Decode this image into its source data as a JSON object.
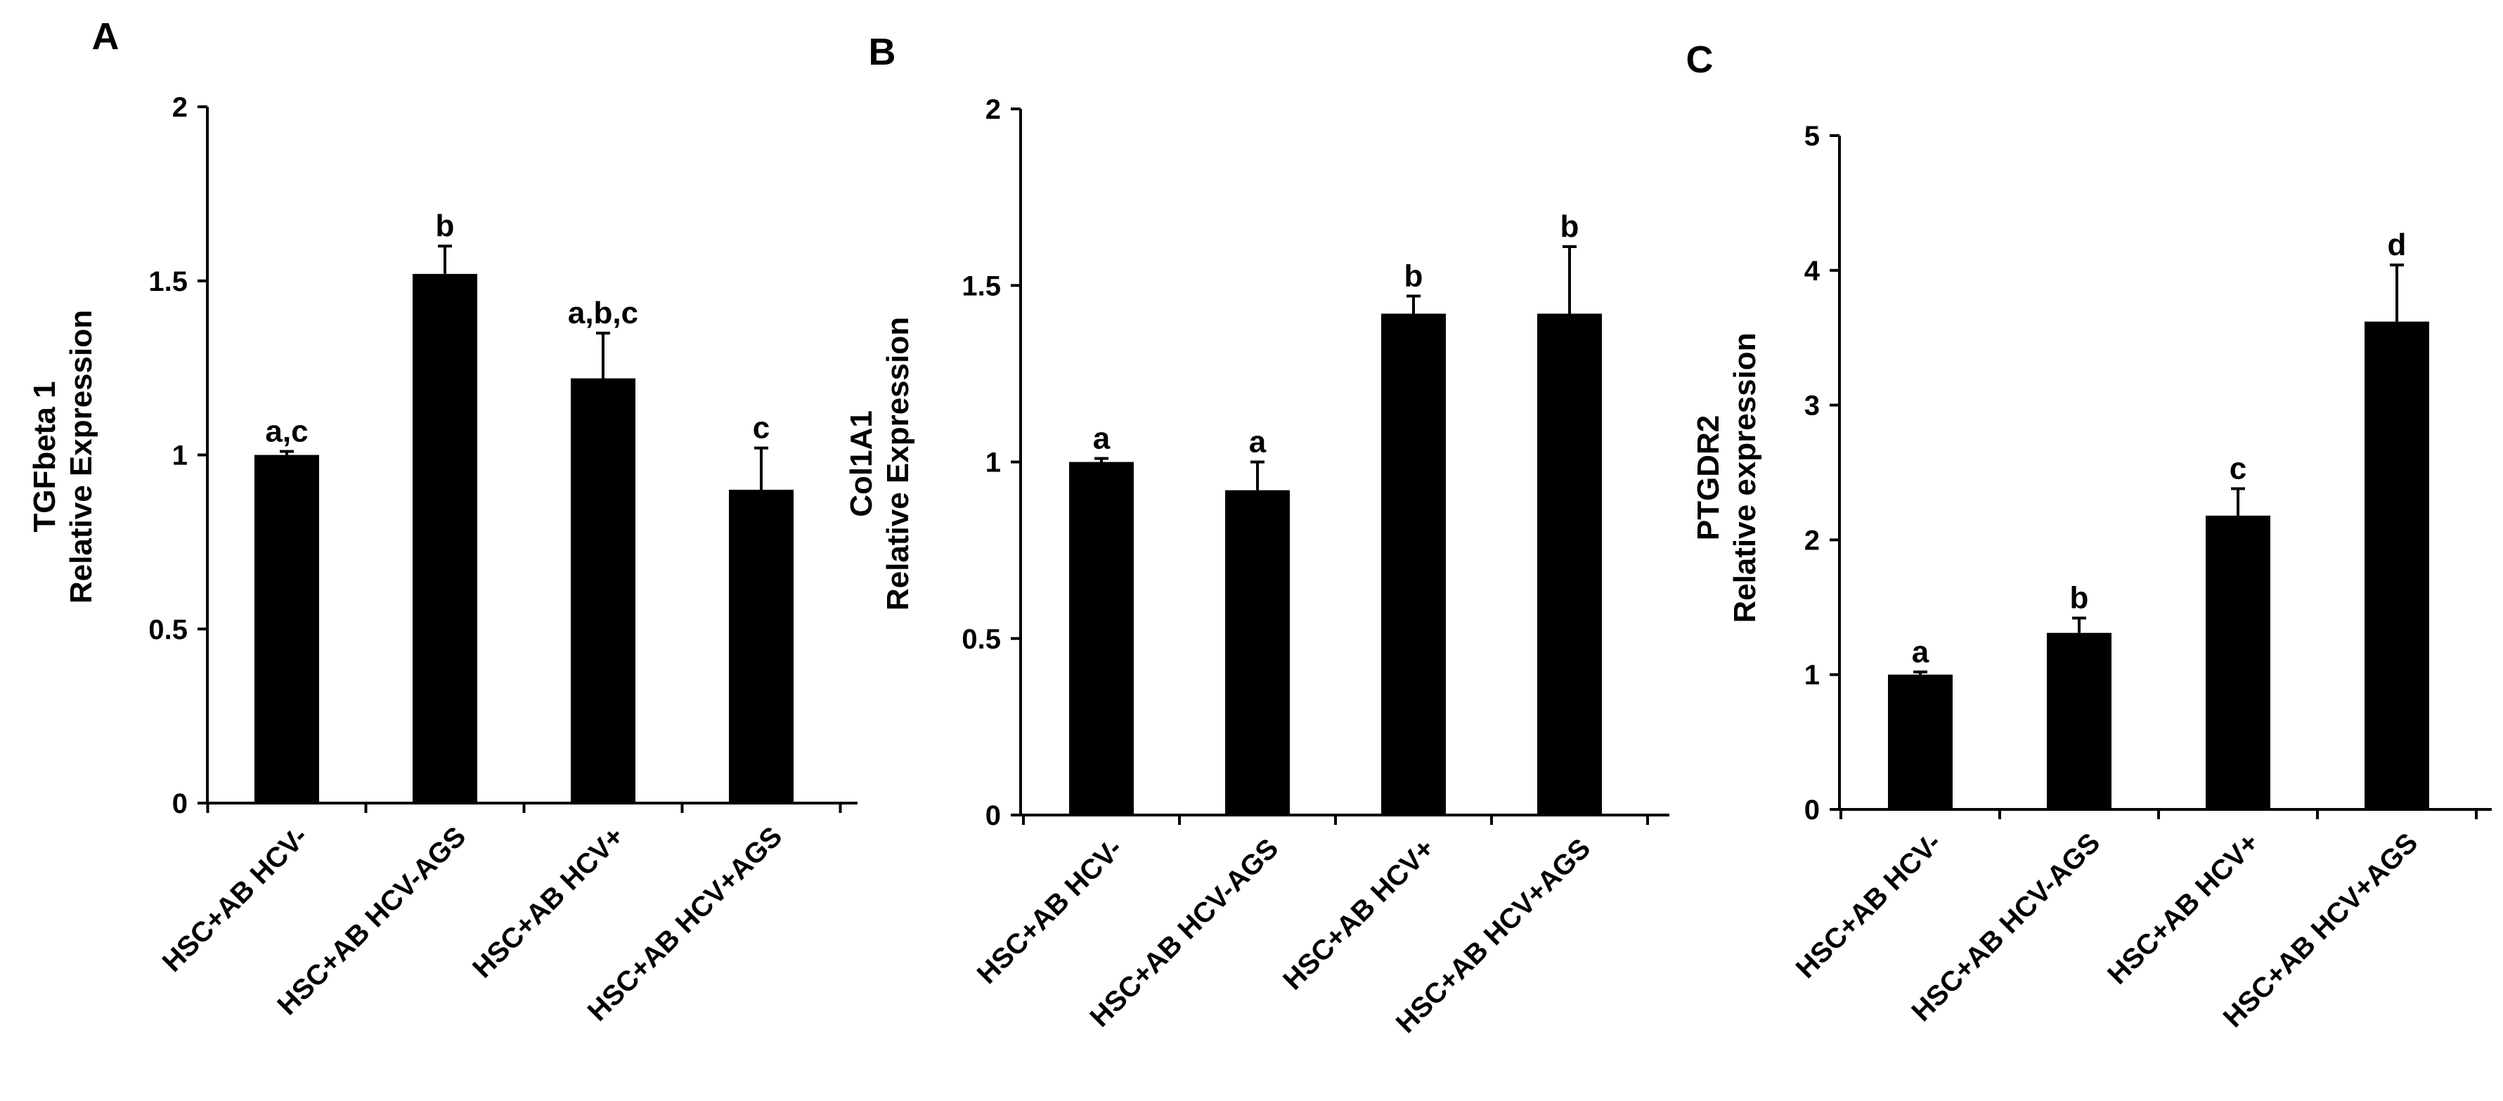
{
  "colors": {
    "bar": "#000000",
    "axis": "#000000",
    "background": "#ffffff"
  },
  "chart_data": [
    {
      "panel": "A",
      "type": "bar",
      "categories": [
        "HSC+AB HCV-",
        "HSC+AB HCV-AGS",
        "HSC+AB HCV+",
        "HSC+AB HCV+AGS"
      ],
      "values": [
        1.0,
        1.52,
        1.22,
        0.9
      ],
      "errors": [
        0.01,
        0.08,
        0.13,
        0.12
      ],
      "significance": [
        "a,c",
        "b",
        "a,b,c",
        "c"
      ],
      "ylabel_lines": [
        "TGFbeta 1",
        "Relative  Expression"
      ],
      "ylim": [
        0,
        2
      ],
      "yticks": [
        0,
        0.5,
        1,
        1.5,
        2
      ],
      "ytick_labels": [
        "0",
        "0.5",
        "1",
        "1.5",
        "2"
      ]
    },
    {
      "panel": "B",
      "type": "bar",
      "categories": [
        "HSC+AB HCV-",
        "HSC+AB HCV-AGS",
        "HSC+AB HCV+",
        "HSC+AB HCV+AGS"
      ],
      "values": [
        1.0,
        0.92,
        1.42,
        1.42
      ],
      "errors": [
        0.01,
        0.08,
        0.05,
        0.19
      ],
      "significance": [
        "a",
        "a",
        "b",
        "b"
      ],
      "ylabel_lines": [
        "Col1A1",
        "Relative Expression"
      ],
      "ylim": [
        0,
        2
      ],
      "yticks": [
        0,
        0.5,
        1,
        1.5,
        2
      ],
      "ytick_labels": [
        "0",
        "0.5",
        "1",
        "1.5",
        "2"
      ]
    },
    {
      "panel": "C",
      "type": "bar",
      "categories": [
        "HSC+AB HCV-",
        "HSC+AB HCV-AGS",
        "HSC+AB HCV+",
        "HSC+AB HCV+AGS"
      ],
      "values": [
        1.0,
        1.31,
        2.18,
        3.62
      ],
      "errors": [
        0.02,
        0.11,
        0.2,
        0.42
      ],
      "significance": [
        "a",
        "b",
        "c",
        "d"
      ],
      "ylabel_lines": [
        "PTGDR2",
        "Relative expression"
      ],
      "ylim": [
        0,
        5
      ],
      "yticks": [
        0,
        1,
        2,
        3,
        4,
        5
      ],
      "ytick_labels": [
        "0",
        "1",
        "2",
        "3",
        "4",
        "5"
      ]
    }
  ]
}
